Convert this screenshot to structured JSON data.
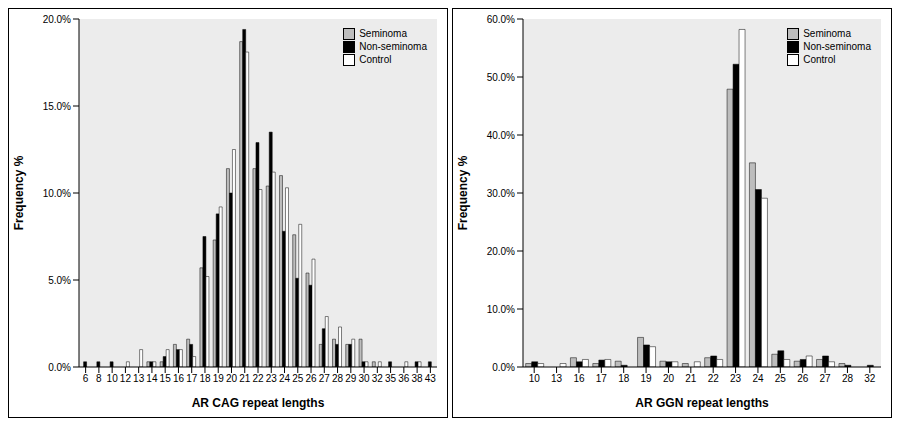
{
  "chart_data": [
    {
      "type": "bar",
      "x_label": "AR CAG repeat lengths",
      "y_label": "Frequency %",
      "categories": [
        "6",
        "8",
        "10",
        "12",
        "13",
        "14",
        "15",
        "16",
        "17",
        "18",
        "19",
        "20",
        "21",
        "22",
        "23",
        "24",
        "25",
        "26",
        "27",
        "28",
        "29",
        "30",
        "32",
        "35",
        "36",
        "38",
        "43"
      ],
      "series": [
        {
          "name": "Seminoma",
          "color": "#bdbdbd",
          "values": [
            0,
            0,
            0,
            0,
            0,
            0.3,
            0.3,
            1.3,
            1.6,
            5.7,
            7.3,
            11.4,
            18.7,
            11.4,
            10.4,
            11.0,
            7.6,
            5.4,
            1.3,
            1.6,
            1.3,
            1.6,
            0.3,
            0,
            0,
            0,
            0
          ]
        },
        {
          "name": "Non-seminoma",
          "color": "#000000",
          "values": [
            0.3,
            0.3,
            0.3,
            0,
            0,
            0.3,
            0.6,
            1.0,
            1.3,
            7.5,
            8.8,
            10.0,
            19.4,
            12.9,
            13.5,
            7.8,
            5.1,
            4.7,
            2.2,
            1.3,
            1.3,
            0.3,
            0,
            0.3,
            0,
            0.3,
            0.3
          ]
        },
        {
          "name": "Control",
          "color": "#ffffff",
          "values": [
            0,
            0,
            0,
            0.3,
            1.0,
            0.3,
            1.0,
            1.0,
            0.6,
            5.2,
            9.2,
            12.5,
            18.1,
            10.2,
            11.2,
            10.3,
            8.2,
            6.2,
            2.9,
            2.3,
            1.6,
            0.3,
            0.3,
            0,
            0.3,
            0.3,
            0
          ]
        }
      ],
      "ylim": [
        0,
        20
      ],
      "yticks": [
        {
          "value": 0,
          "label": "0.0%"
        },
        {
          "value": 5,
          "label": "5.0%"
        },
        {
          "value": 10,
          "label": "10.0%"
        },
        {
          "value": 15,
          "label": "15.0%"
        },
        {
          "value": 20,
          "label": "20.0%"
        }
      ],
      "grid": false,
      "legend": "upper right"
    },
    {
      "type": "bar",
      "x_label": "AR GGN repeat lengths",
      "y_label": "Frequency %",
      "categories": [
        "10",
        "13",
        "16",
        "17",
        "18",
        "19",
        "20",
        "21",
        "22",
        "23",
        "24",
        "25",
        "26",
        "27",
        "28",
        "32"
      ],
      "series": [
        {
          "name": "Seminoma",
          "color": "#bdbdbd",
          "values": [
            0.6,
            0,
            1.6,
            0.6,
            1.0,
            5.1,
            1.0,
            0.6,
            1.6,
            47.9,
            35.2,
            2.2,
            1.0,
            1.3,
            0.6,
            0
          ]
        },
        {
          "name": "Non-seminoma",
          "color": "#000000",
          "values": [
            0.9,
            0,
            0.9,
            1.2,
            0.3,
            3.8,
            0.9,
            0,
            1.9,
            52.2,
            30.6,
            2.8,
            1.3,
            1.9,
            0.3,
            0.3
          ]
        },
        {
          "name": "Control",
          "color": "#ffffff",
          "values": [
            0.6,
            0.6,
            1.3,
            1.3,
            0,
            3.5,
            0.9,
            0.9,
            1.3,
            58.2,
            29.1,
            1.3,
            1.9,
            0.9,
            0,
            0
          ]
        }
      ],
      "ylim": [
        0,
        60
      ],
      "yticks": [
        {
          "value": 0,
          "label": "0.0%"
        },
        {
          "value": 10,
          "label": "10.0%"
        },
        {
          "value": 20,
          "label": "20.0%"
        },
        {
          "value": 30,
          "label": "30.0%"
        },
        {
          "value": 40,
          "label": "40.0%"
        },
        {
          "value": 50,
          "label": "50.0%"
        },
        {
          "value": 60,
          "label": "60.0%"
        }
      ],
      "grid": false,
      "legend": "upper right"
    }
  ]
}
